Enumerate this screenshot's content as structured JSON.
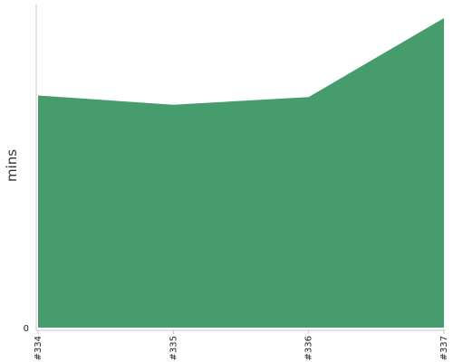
{
  "chart_data": {
    "type": "area",
    "categories": [
      "#334",
      "#335",
      "#336",
      "#337"
    ],
    "values": [
      75,
      72,
      74.5,
      100
    ],
    "ylabel": "mins",
    "xlabel": "",
    "y_ticks": [
      "0"
    ],
    "ylim": [
      0,
      100
    ],
    "grid": false,
    "legend": "none",
    "fill_color": "#469c6d"
  }
}
